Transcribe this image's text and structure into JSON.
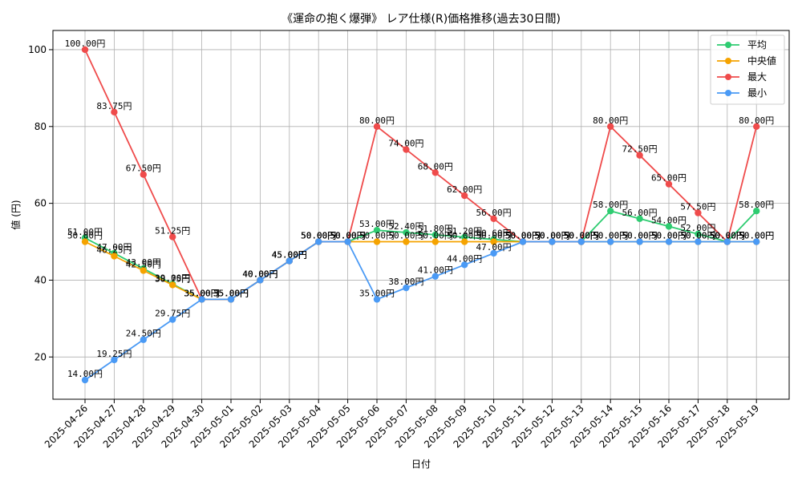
{
  "chart_data": {
    "type": "line",
    "title": "《運命の抱く爆弾》 レア仕様(R)価格推移(過去30日間)",
    "xlabel": "日付",
    "ylabel": "値 (円)",
    "ylim": [
      9,
      105
    ],
    "yticks": [
      20,
      40,
      60,
      80,
      100
    ],
    "grid": true,
    "legend_position": "top-right",
    "value_suffix": "円",
    "categories": [
      "2025-04-26",
      "2025-04-27",
      "2025-04-28",
      "2025-04-29",
      "2025-04-30",
      "2025-05-01",
      "2025-05-02",
      "2025-05-03",
      "2025-05-04",
      "2025-05-05",
      "2025-05-06",
      "2025-05-07",
      "2025-05-08",
      "2025-05-09",
      "2025-05-10",
      "2025-05-11",
      "2025-05-12",
      "2025-05-13",
      "2025-05-14",
      "2025-05-15",
      "2025-05-16",
      "2025-05-17",
      "2025-05-18",
      "2025-05-19"
    ],
    "series": [
      {
        "name": "平均",
        "color": "#2ecc71",
        "values": [
          51.0,
          47.0,
          43.0,
          39.0,
          35.0,
          35.0,
          40.0,
          45.0,
          50.0,
          50.0,
          53.0,
          52.4,
          51.8,
          51.2,
          50.6,
          50.0,
          50.0,
          50.0,
          58.0,
          56.0,
          54.0,
          52.0,
          50.0,
          58.0
        ]
      },
      {
        "name": "中央値",
        "color": "#f5a300",
        "values": [
          50.0,
          46.25,
          42.5,
          38.75,
          35.0,
          35.0,
          40.0,
          45.0,
          50.0,
          50.0,
          50.0,
          50.0,
          50.0,
          50.0,
          50.0,
          50.0,
          50.0,
          50.0,
          50.0,
          50.0,
          50.0,
          50.0,
          50.0,
          50.0
        ]
      },
      {
        "name": "最大",
        "color": "#ef4b4b",
        "values": [
          100.0,
          83.75,
          67.5,
          51.25,
          35.0,
          35.0,
          40.0,
          45.0,
          50.0,
          50.0,
          80.0,
          74.0,
          68.0,
          62.0,
          56.0,
          50.0,
          50.0,
          50.0,
          80.0,
          72.5,
          65.0,
          57.5,
          50.0,
          80.0
        ]
      },
      {
        "name": "最小",
        "color": "#4a9af5",
        "values": [
          14.0,
          19.25,
          24.5,
          29.75,
          35.0,
          35.0,
          40.0,
          45.0,
          50.0,
          50.0,
          35.0,
          38.0,
          41.0,
          44.0,
          47.0,
          50.0,
          50.0,
          50.0,
          50.0,
          50.0,
          50.0,
          50.0,
          50.0,
          50.0
        ]
      }
    ]
  }
}
